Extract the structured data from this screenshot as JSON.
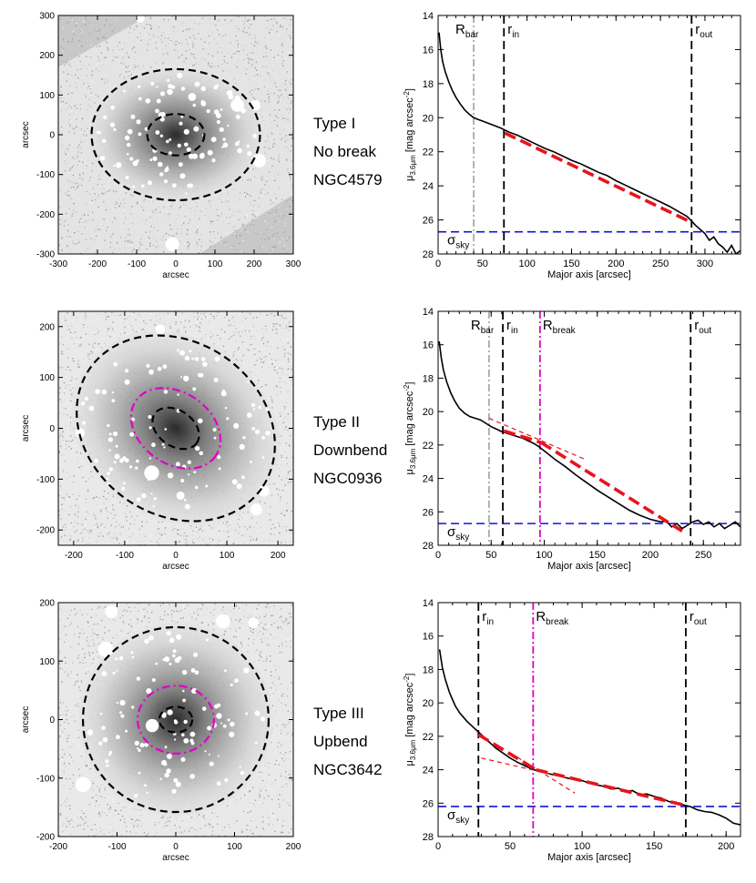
{
  "image_axes": {
    "xlabel": "arcsec",
    "ylabel": "arcsec"
  },
  "profile_axes": {
    "xlabel": "Major axis [arcsec]",
    "ylabel_main": "μ",
    "ylabel_sub": "3.6μm",
    "ylabel_rest": " [mag arcsec",
    "ylabel_sup": "-2",
    "ylabel_close": "]"
  },
  "markers": {
    "r_main": "r",
    "in_sub": "in",
    "out_sub": "out",
    "R_main": "R",
    "bar_sub": "bar",
    "break_sub": "break",
    "sigma_main": "σ",
    "sky_sub": "sky"
  },
  "colors": {
    "profile": "#000000",
    "fit": "#e8141c",
    "sky": "#1010dd",
    "break": "#e000c8",
    "bar": "#a0a0a0",
    "outline": "#000000",
    "background": "#ffffff"
  },
  "chart_data": [
    {
      "type": "image",
      "panel": "NGC4579 image",
      "xlim": [
        -300,
        300
      ],
      "ylim": [
        -300,
        300
      ],
      "xticks": [
        -300,
        -200,
        -100,
        0,
        100,
        200,
        300
      ],
      "yticks": [
        -300,
        -200,
        -100,
        0,
        100,
        200,
        300
      ],
      "ellipses": [
        {
          "style": "black-dashed",
          "semi_major": 215,
          "semi_minor": 165,
          "angle_deg": 0
        },
        {
          "style": "black-dashed",
          "semi_major": 73,
          "semi_minor": 52,
          "angle_deg": 0
        }
      ]
    },
    {
      "type": "line",
      "panel": "NGC4579 profile",
      "type_label": "Type I",
      "break_label": "No break",
      "galaxy": "NGC4579",
      "xlim": [
        0,
        340
      ],
      "ylim": [
        28,
        14
      ],
      "xticks": [
        0,
        50,
        100,
        150,
        200,
        250,
        300
      ],
      "yticks": [
        14,
        16,
        18,
        20,
        22,
        24,
        26,
        28
      ],
      "series": [
        {
          "role": "profile",
          "x": [
            1,
            3,
            5,
            8,
            12,
            16,
            20,
            25,
            30,
            35,
            40,
            45,
            50,
            60,
            70,
            80,
            90,
            100,
            110,
            120,
            130,
            140,
            150,
            160,
            170,
            180,
            190,
            200,
            210,
            220,
            230,
            240,
            250,
            260,
            270,
            280,
            290,
            300,
            305,
            310,
            315,
            320,
            325,
            330,
            335,
            340
          ],
          "y": [
            15.0,
            16.0,
            16.7,
            17.3,
            17.9,
            18.4,
            18.8,
            19.2,
            19.55,
            19.8,
            20.0,
            20.1,
            20.2,
            20.4,
            20.6,
            20.85,
            21.05,
            21.3,
            21.55,
            21.8,
            22.0,
            22.25,
            22.5,
            22.7,
            22.95,
            23.2,
            23.4,
            23.7,
            23.95,
            24.2,
            24.45,
            24.7,
            24.95,
            25.2,
            25.5,
            25.8,
            26.35,
            26.8,
            27.2,
            27.0,
            27.4,
            27.6,
            27.9,
            27.5,
            28.0,
            27.8
          ]
        },
        {
          "role": "fit",
          "x": [
            75,
            283
          ],
          "y": [
            20.9,
            26.1
          ]
        }
      ],
      "r_in": 74,
      "r_out": 285,
      "R_bar": 40,
      "R_break": null,
      "sigma_sky": 26.7
    },
    {
      "type": "image",
      "panel": "NGC0936 image",
      "xlim": [
        -230,
        230
      ],
      "ylim": [
        -230,
        230
      ],
      "xticks": [
        -200,
        -100,
        0,
        100,
        200
      ],
      "yticks": [
        -200,
        -100,
        0,
        100,
        200
      ],
      "ellipses": [
        {
          "style": "black-dashed",
          "semi_major": 205,
          "semi_minor": 170,
          "angle_deg": -35
        },
        {
          "style": "magenta-dashdot",
          "semi_major": 95,
          "semi_minor": 70,
          "angle_deg": -35
        },
        {
          "style": "black-dashed",
          "semi_major": 50,
          "semi_minor": 35,
          "angle_deg": -35
        }
      ]
    },
    {
      "type": "line",
      "panel": "NGC0936 profile",
      "type_label": "Type II",
      "break_label": "Downbend",
      "galaxy": "NGC0936",
      "xlim": [
        0,
        285
      ],
      "ylim": [
        28,
        14
      ],
      "xticks": [
        0,
        50,
        100,
        150,
        200,
        250
      ],
      "yticks": [
        14,
        16,
        18,
        20,
        22,
        24,
        26,
        28
      ],
      "series": [
        {
          "role": "profile",
          "x": [
            1,
            3,
            5,
            8,
            12,
            16,
            20,
            25,
            30,
            35,
            40,
            45,
            50,
            55,
            60,
            65,
            70,
            75,
            80,
            85,
            90,
            95,
            100,
            110,
            120,
            130,
            140,
            150,
            160,
            170,
            180,
            190,
            200,
            210,
            215,
            220,
            225,
            230,
            235,
            240,
            245,
            250,
            255,
            260,
            265,
            270,
            275,
            280,
            285
          ],
          "y": [
            15.8,
            16.8,
            17.5,
            18.2,
            18.9,
            19.4,
            19.8,
            20.1,
            20.3,
            20.4,
            20.5,
            20.7,
            20.9,
            21.05,
            21.2,
            21.3,
            21.4,
            21.5,
            21.6,
            21.75,
            21.9,
            22.1,
            22.35,
            22.85,
            23.3,
            23.8,
            24.25,
            24.7,
            25.1,
            25.5,
            25.9,
            26.2,
            26.45,
            26.6,
            26.55,
            26.9,
            26.7,
            27.0,
            26.8,
            26.6,
            26.5,
            26.75,
            26.6,
            26.9,
            26.7,
            27.0,
            26.8,
            26.6,
            26.9
          ]
        },
        {
          "role": "fit",
          "x": [
            62,
            97
          ],
          "y": [
            21.15,
            21.85
          ]
        },
        {
          "role": "fit",
          "x": [
            97,
            230
          ],
          "y": [
            21.85,
            27.15
          ]
        },
        {
          "role": "extension",
          "x": [
            48,
            140
          ],
          "y": [
            20.4,
            22.9
          ]
        }
      ],
      "r_in": 61,
      "r_out": 238,
      "R_bar": 48,
      "R_break": 96,
      "sigma_sky": 26.7
    },
    {
      "type": "image",
      "panel": "NGC3642 image",
      "xlim": [
        -200,
        200
      ],
      "ylim": [
        -200,
        200
      ],
      "xticks": [
        -200,
        -100,
        0,
        100,
        200
      ],
      "yticks": [
        -200,
        -100,
        0,
        100,
        200
      ],
      "ellipses": [
        {
          "style": "black-dashed",
          "semi_major": 158,
          "semi_minor": 158,
          "angle_deg": 0
        },
        {
          "style": "magenta-dashdot",
          "semi_major": 65,
          "semi_minor": 58,
          "angle_deg": 0
        },
        {
          "style": "black-dashed",
          "semi_major": 28,
          "semi_minor": 22,
          "angle_deg": 0
        }
      ]
    },
    {
      "type": "line",
      "panel": "NGC3642 profile",
      "type_label": "Type III",
      "break_label": "Upbend",
      "galaxy": "NGC3642",
      "xlim": [
        0,
        210
      ],
      "ylim": [
        28,
        14
      ],
      "xticks": [
        0,
        50,
        100,
        150,
        200
      ],
      "yticks": [
        14,
        16,
        18,
        20,
        22,
        24,
        26,
        28
      ],
      "series": [
        {
          "role": "profile",
          "x": [
            1,
            3,
            5,
            8,
            10,
            12,
            15,
            18,
            20,
            25,
            30,
            35,
            40,
            45,
            50,
            55,
            60,
            65,
            70,
            75,
            80,
            85,
            90,
            95,
            100,
            105,
            110,
            115,
            120,
            125,
            130,
            135,
            140,
            145,
            150,
            155,
            160,
            165,
            170,
            175,
            180,
            185,
            190,
            195,
            200,
            205,
            210
          ],
          "y": [
            16.8,
            17.9,
            18.6,
            19.4,
            19.8,
            20.2,
            20.6,
            20.9,
            21.1,
            21.5,
            21.9,
            22.3,
            22.7,
            23.0,
            23.3,
            23.55,
            23.75,
            23.95,
            24.1,
            24.2,
            24.3,
            24.4,
            24.5,
            24.6,
            24.65,
            24.8,
            24.9,
            25.0,
            25.15,
            25.1,
            25.3,
            25.25,
            25.5,
            25.45,
            25.6,
            25.7,
            25.9,
            26.0,
            26.1,
            26.2,
            26.4,
            26.5,
            26.55,
            26.7,
            26.9,
            27.2,
            27.3
          ]
        },
        {
          "role": "fit",
          "x": [
            28,
            68
          ],
          "y": [
            21.9,
            24.0
          ]
        },
        {
          "role": "fit",
          "x": [
            68,
            170
          ],
          "y": [
            24.0,
            26.1
          ]
        },
        {
          "role": "extension",
          "x": [
            30,
            100
          ],
          "y": [
            23.3,
            24.7
          ]
        },
        {
          "role": "extension",
          "x": [
            55,
            95
          ],
          "y": [
            23.25,
            25.4
          ]
        }
      ],
      "r_in": 28,
      "r_out": 172,
      "R_bar": null,
      "R_break": 66,
      "sigma_sky": 26.2
    }
  ]
}
